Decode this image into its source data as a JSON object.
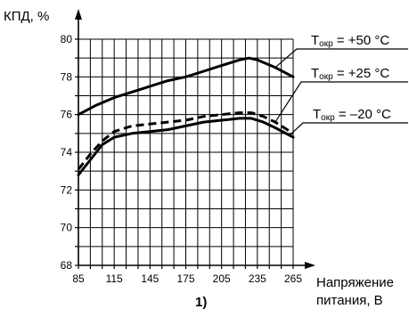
{
  "chart_data": {
    "type": "line",
    "ylabel": "КПД, %",
    "xlabel": [
      "Напряжение",
      "питания, В"
    ],
    "caption": "1)",
    "x_ticks": [
      "85",
      "115",
      "145",
      "175",
      "205",
      "235",
      "265"
    ],
    "y_ticks": [
      "68",
      "70",
      "72",
      "74",
      "76",
      "78",
      "80"
    ],
    "xlim": [
      85,
      265
    ],
    "ylim": [
      68,
      80
    ],
    "grid": true,
    "series": [
      {
        "name": "T окр = +50 °C",
        "symbol": "T",
        "subscript": "окр",
        "value_text": " = +50 °C",
        "dash": "solid",
        "x": [
          85,
          100,
          115,
          130,
          145,
          160,
          175,
          190,
          205,
          220,
          228,
          235,
          250,
          265
        ],
        "y": [
          76.0,
          76.5,
          76.9,
          77.2,
          77.5,
          77.8,
          78.0,
          78.3,
          78.6,
          78.9,
          79.0,
          78.9,
          78.5,
          78.0
        ]
      },
      {
        "name": "T окр = +25 °C",
        "symbol": "T",
        "subscript": "окр",
        "value_text": " = +25 °C",
        "dash": "dashed",
        "x": [
          85,
          95,
          105,
          115,
          130,
          145,
          160,
          175,
          190,
          205,
          220,
          230,
          240,
          250,
          265
        ],
        "y": [
          73.1,
          73.9,
          74.6,
          75.1,
          75.4,
          75.5,
          75.6,
          75.7,
          75.9,
          76.0,
          76.1,
          76.1,
          75.9,
          75.6,
          75.0
        ]
      },
      {
        "name": "T окр = –20 °C",
        "symbol": "T",
        "subscript": "окр",
        "value_text": " = –20 °C",
        "dash": "solid",
        "x": [
          85,
          95,
          105,
          115,
          130,
          145,
          160,
          175,
          190,
          205,
          220,
          230,
          240,
          250,
          265
        ],
        "y": [
          72.8,
          73.6,
          74.4,
          74.8,
          75.0,
          75.1,
          75.2,
          75.4,
          75.6,
          75.7,
          75.8,
          75.8,
          75.6,
          75.3,
          74.8
        ]
      }
    ]
  }
}
